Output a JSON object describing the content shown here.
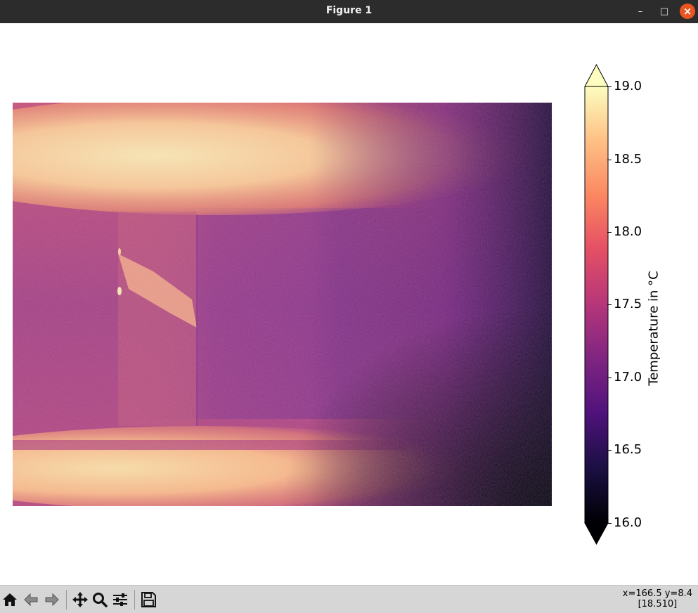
{
  "window": {
    "title": "Figure 1",
    "controls": {
      "minimize": "–",
      "maximize": "□",
      "close": "×"
    }
  },
  "toolbar": {
    "buttons": [
      {
        "id": "home",
        "icon": "home-icon"
      },
      {
        "id": "back",
        "icon": "back-arrow-icon"
      },
      {
        "id": "forward",
        "icon": "forward-arrow-icon"
      },
      {
        "id": "pan",
        "icon": "pan-icon"
      },
      {
        "id": "zoom",
        "icon": "zoom-icon"
      },
      {
        "id": "configure",
        "icon": "configure-subplots-icon"
      },
      {
        "id": "save",
        "icon": "save-icon"
      }
    ],
    "cursor_position": "x=166.5 y=8.4",
    "cursor_value": "[18.510]"
  },
  "chart_data": {
    "type": "heatmap",
    "colormap": "magma",
    "colorbar": {
      "label": "Temperature in °C",
      "vmin": 16.0,
      "vmax": 19.0,
      "extend": "both",
      "ticks": [
        "16.0",
        "16.5",
        "17.0",
        "17.5",
        "18.0",
        "18.5",
        "19.0"
      ]
    },
    "axes_visible": false
  },
  "colors": {
    "titlebar": "#2c2c2c",
    "close_button": "#e95420",
    "toolbar": "#d6d6d6"
  }
}
